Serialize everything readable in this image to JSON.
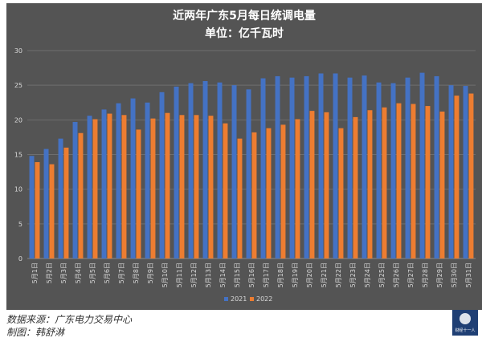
{
  "chart_data": {
    "type": "bar",
    "title": "近两年广东5月每日统调电量",
    "subtitle": "单位：亿千瓦时",
    "xlabel": "",
    "ylabel": "",
    "ylim": [
      0,
      30
    ],
    "yticks": [
      0,
      5,
      10,
      15,
      20,
      25,
      30
    ],
    "grid": true,
    "legend": "bottom",
    "categories": [
      "5月1日",
      "5月2日",
      "5月3日",
      "5月4日",
      "5月5日",
      "5月6日",
      "5月7日",
      "5月8日",
      "5月9日",
      "5月10日",
      "5月11日",
      "5月12日",
      "5月13日",
      "5月14日",
      "5月15日",
      "5月16日",
      "5月17日",
      "5月18日",
      "5月19日",
      "5月20日",
      "5月21日",
      "5月22日",
      "5月23日",
      "5月24日",
      "5月25日",
      "5月26日",
      "5月27日",
      "5月28日",
      "5月29日",
      "5月30日",
      "5月31日"
    ],
    "series": [
      {
        "name": "2021",
        "color": "#4472c4",
        "values": [
          14.8,
          15.8,
          17.3,
          19.7,
          20.6,
          21.5,
          22.4,
          23.1,
          22.5,
          24.0,
          24.8,
          25.3,
          25.6,
          25.4,
          25.0,
          24.4,
          26.0,
          26.3,
          26.1,
          26.3,
          26.7,
          26.7,
          26.1,
          26.4,
          25.4,
          25.3,
          26.1,
          26.8,
          26.3,
          25.0,
          24.9
        ]
      },
      {
        "name": "2022",
        "color": "#ed7d31",
        "values": [
          13.9,
          13.6,
          16.0,
          18.1,
          20.1,
          20.9,
          20.7,
          18.6,
          20.2,
          21.0,
          20.7,
          20.7,
          20.6,
          19.5,
          17.3,
          18.2,
          18.8,
          19.3,
          20.1,
          21.3,
          21.1,
          18.8,
          20.4,
          21.4,
          21.8,
          22.4,
          22.3,
          22.0,
          21.2,
          23.5,
          23.8
        ]
      }
    ]
  },
  "footer": {
    "source": "数据来源：广东电力交易中心",
    "author": "制图：韩舒淋"
  },
  "logo": {
    "text": "财经十一人"
  },
  "colors": {
    "background": "#545454",
    "grid": "#6e6e6e",
    "axis": "#8a8a8a"
  }
}
